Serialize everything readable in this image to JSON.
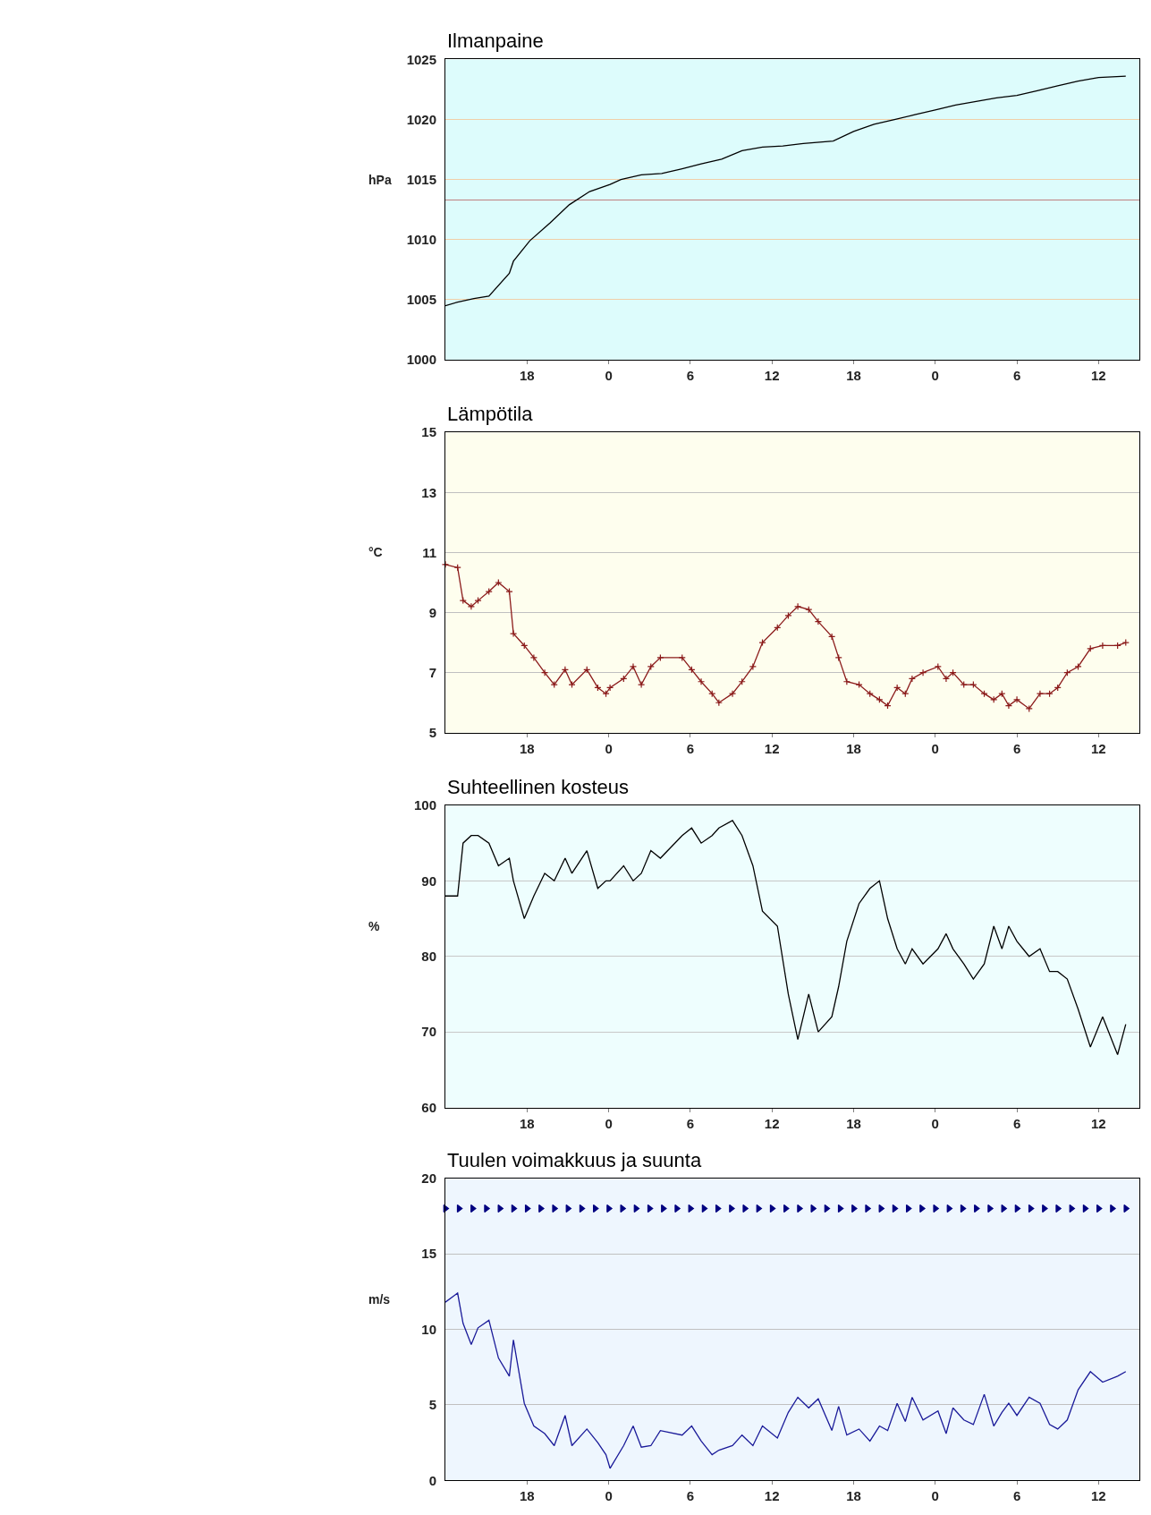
{
  "chart_data": [
    {
      "type": "line",
      "title": "Ilmanpaine",
      "ylabel": "hPa",
      "xlim": [
        "--01-01T12:00",
        "--01-03T15:00"
      ],
      "ylim": [
        1000,
        1025
      ],
      "yticks": [
        1000,
        1005,
        1010,
        1015,
        1020,
        1025
      ],
      "xticks": [
        {
          "value": "--01-01T18:00",
          "label": "18"
        },
        {
          "value": "--01-02T00:00",
          "label": "0"
        },
        {
          "value": "--01-02T06:00",
          "label": "6"
        },
        {
          "value": "--01-02T12:00",
          "label": "12"
        },
        {
          "value": "--01-02T18:00",
          "label": "18"
        },
        {
          "value": "--01-03T00:00",
          "label": "0"
        },
        {
          "value": "--01-03T06:00",
          "label": "6"
        },
        {
          "value": "--01-03T12:00",
          "label": "12"
        }
      ],
      "grid": "y",
      "ref_lines": [
        {
          "axis": "y",
          "value": 1013.3,
          "color": "#c08080"
        }
      ],
      "series": [
        {
          "color": "#000000",
          "x": [
            "--01-01T12:00",
            "--01-01T12:54",
            "--01-01T14:06",
            "--01-01T15:12",
            "--01-01T16:42",
            "--01-01T17:00",
            "--01-01T18:12",
            "--01-01T19:42",
            "--01-01T21:06",
            "--01-01T22:36",
            "--01-02T00:06",
            "--01-02T00:54",
            "--01-02T02:24",
            "--01-02T03:54",
            "--01-02T05:24",
            "--01-02T06:48",
            "--01-02T08:18",
            "--01-02T09:48",
            "--01-02T11:18",
            "--01-02T12:48",
            "--01-02T14:18",
            "--01-02T16:30",
            "--01-02T18:00",
            "--01-02T19:30",
            "--01-02T21:00",
            "--01-02T22:30",
            "--01-03T00:00",
            "--01-03T01:30",
            "--01-03T03:00",
            "--01-03T04:30",
            "--01-03T06:00",
            "--01-03T07:30",
            "--01-03T09:00",
            "--01-03T10:30",
            "--01-03T12:00",
            "--01-03T14:00"
          ],
          "values": [
            1004.5,
            1004.8,
            1005.1,
            1005.3,
            1007.2,
            1008.2,
            1009.9,
            1011.4,
            1012.9,
            1014.0,
            1014.6,
            1015.0,
            1015.4,
            1015.5,
            1015.9,
            1016.3,
            1016.7,
            1017.4,
            1017.7,
            1017.8,
            1018.0,
            1018.2,
            1019.0,
            1019.6,
            1020.0,
            1020.4,
            1020.8,
            1021.2,
            1021.5,
            1021.8,
            1022.0,
            1022.4,
            1022.8,
            1023.2,
            1023.5,
            1023.6
          ]
        }
      ]
    },
    {
      "type": "line",
      "title": "Lämpötila",
      "ylabel": "°C",
      "xlim": [
        "--01-01T12:00",
        "--01-03T15:00"
      ],
      "ylim": [
        5,
        15
      ],
      "yticks": [
        5,
        7,
        9,
        11,
        13,
        15
      ],
      "xticks": [
        {
          "value": "--01-01T18:00",
          "label": "18"
        },
        {
          "value": "--01-02T00:00",
          "label": "0"
        },
        {
          "value": "--01-02T06:00",
          "label": "6"
        },
        {
          "value": "--01-02T12:00",
          "label": "12"
        },
        {
          "value": "--01-02T18:00",
          "label": "18"
        },
        {
          "value": "--01-03T00:00",
          "label": "0"
        },
        {
          "value": "--01-03T06:00",
          "label": "6"
        },
        {
          "value": "--01-03T12:00",
          "label": "12"
        }
      ],
      "grid": "y",
      "x": [
        "--01-01T12:00",
        "--01-01T12:54",
        "--01-01T13:18",
        "--01-01T13:54",
        "--01-01T14:24",
        "--01-01T15:12",
        "--01-01T15:54",
        "--01-01T16:42",
        "--01-01T17:00",
        "--01-01T17:48",
        "--01-01T18:30",
        "--01-01T19:18",
        "--01-01T20:00",
        "--01-01T20:48",
        "--01-01T21:18",
        "--01-01T22:24",
        "--01-01T23:12",
        "--01-01T23:48",
        "--01-02T00:06",
        "--01-02T01:06",
        "--01-02T01:48",
        "--01-02T02:24",
        "--01-02T03:06",
        "--01-02T03:48",
        "--01-02T05:24",
        "--01-02T06:06",
        "--01-02T06:48",
        "--01-02T07:36",
        "--01-02T08:06",
        "--01-02T09:06",
        "--01-02T09:48",
        "--01-02T10:36",
        "--01-02T11:18",
        "--01-02T12:24",
        "--01-02T13:12",
        "--01-02T13:54",
        "--01-02T14:42",
        "--01-02T15:24",
        "--01-02T16:24",
        "--01-02T16:54",
        "--01-02T17:30",
        "--01-02T18:24",
        "--01-02T19:12",
        "--01-02T19:54",
        "--01-02T20:30",
        "--01-02T21:12",
        "--01-02T21:48",
        "--01-02T22:18",
        "--01-02T23:06",
        "--01-03T00:12",
        "--01-03T00:48",
        "--01-03T01:18",
        "--01-03T02:06",
        "--01-03T02:48",
        "--01-03T03:36",
        "--01-03T04:18",
        "--01-03T04:54",
        "--01-03T05:24",
        "--01-03T06:00",
        "--01-03T06:54",
        "--01-03T07:42",
        "--01-03T08:24",
        "--01-03T09:00",
        "--01-03T09:42",
        "--01-03T10:30",
        "--01-03T11:24",
        "--01-03T12:18",
        "--01-03T13:24",
        "--01-03T14:00"
      ],
      "series": [
        {
          "color": "#8b1a1a",
          "marker": "cross",
          "values": [
            10.6,
            10.5,
            9.4,
            9.2,
            9.4,
            9.7,
            10.0,
            9.7,
            8.3,
            7.9,
            7.5,
            7.0,
            6.6,
            7.1,
            6.6,
            7.1,
            6.5,
            6.3,
            6.5,
            6.8,
            7.2,
            6.6,
            7.2,
            7.5,
            7.5,
            7.1,
            6.7,
            6.3,
            6.0,
            6.3,
            6.7,
            7.2,
            8.0,
            8.5,
            8.9,
            9.2,
            9.1,
            8.7,
            8.2,
            7.5,
            6.7,
            6.6,
            6.3,
            6.1,
            5.9,
            6.5,
            6.3,
            6.8,
            7.0,
            7.2,
            6.8,
            7.0,
            6.6,
            6.6,
            6.3,
            6.1,
            6.3,
            5.9,
            6.1,
            5.8,
            6.3,
            6.3,
            6.5,
            7.0,
            7.2,
            7.8,
            7.9,
            7.9,
            8.0
          ]
        }
      ]
    },
    {
      "type": "line",
      "title": "Suhteellinen kosteus",
      "ylabel": "%",
      "xlim": [
        "--01-01T12:00",
        "--01-03T15:00"
      ],
      "ylim": [
        60,
        100
      ],
      "yticks": [
        60,
        70,
        80,
        90,
        100
      ],
      "xticks": [
        {
          "value": "--01-01T18:00",
          "label": "18"
        },
        {
          "value": "--01-02T00:00",
          "label": "0"
        },
        {
          "value": "--01-02T06:00",
          "label": "6"
        },
        {
          "value": "--01-02T12:00",
          "label": "12"
        },
        {
          "value": "--01-02T18:00",
          "label": "18"
        },
        {
          "value": "--01-03T00:00",
          "label": "0"
        },
        {
          "value": "--01-03T06:00",
          "label": "6"
        },
        {
          "value": "--01-03T12:00",
          "label": "12"
        }
      ],
      "grid": "y",
      "x": [
        "--01-01T12:00",
        "--01-01T12:54",
        "--01-01T13:18",
        "--01-01T13:54",
        "--01-01T14:24",
        "--01-01T15:12",
        "--01-01T15:54",
        "--01-01T16:42",
        "--01-01T17:00",
        "--01-01T17:48",
        "--01-01T18:30",
        "--01-01T19:18",
        "--01-01T20:00",
        "--01-01T20:48",
        "--01-01T21:18",
        "--01-01T22:24",
        "--01-01T23:12",
        "--01-01T23:48",
        "--01-02T00:06",
        "--01-02T01:06",
        "--01-02T01:48",
        "--01-02T02:24",
        "--01-02T03:06",
        "--01-02T03:48",
        "--01-02T05:24",
        "--01-02T06:06",
        "--01-02T06:48",
        "--01-02T07:36",
        "--01-02T08:06",
        "--01-02T09:06",
        "--01-02T09:48",
        "--01-02T10:36",
        "--01-02T11:18",
        "--01-02T12:24",
        "--01-02T13:12",
        "--01-02T13:54",
        "--01-02T14:42",
        "--01-02T15:24",
        "--01-02T16:24",
        "--01-02T16:54",
        "--01-02T17:30",
        "--01-02T18:24",
        "--01-02T19:12",
        "--01-02T19:54",
        "--01-02T20:30",
        "--01-02T21:12",
        "--01-02T21:48",
        "--01-02T22:18",
        "--01-02T23:06",
        "--01-03T00:12",
        "--01-03T00:48",
        "--01-03T01:18",
        "--01-03T02:06",
        "--01-03T02:48",
        "--01-03T03:36",
        "--01-03T04:18",
        "--01-03T04:54",
        "--01-03T05:24",
        "--01-03T06:00",
        "--01-03T06:54",
        "--01-03T07:42",
        "--01-03T08:24",
        "--01-03T09:00",
        "--01-03T09:42",
        "--01-03T10:30",
        "--01-03T11:24",
        "--01-03T12:18",
        "--01-03T13:24",
        "--01-03T14:00"
      ],
      "series": [
        {
          "color": "#000000",
          "values": [
            88,
            88,
            95,
            96,
            96,
            95,
            92,
            93,
            90,
            85,
            88,
            91,
            90,
            93,
            91,
            94,
            89,
            90,
            90,
            92,
            90,
            91,
            94,
            93,
            96,
            97,
            95,
            96,
            97,
            98,
            96,
            92,
            86,
            84,
            75,
            69,
            75,
            70,
            72,
            76,
            82,
            87,
            89,
            90,
            85,
            81,
            79,
            81,
            79,
            81,
            83,
            81,
            79,
            77,
            79,
            84,
            81,
            84,
            82,
            80,
            81,
            78,
            78,
            77,
            73,
            68,
            72,
            67,
            71
          ]
        }
      ]
    },
    {
      "type": "line",
      "title": "Tuulen voimakkuus ja suunta",
      "ylabel": "m/s",
      "xlim": [
        "--01-01T12:00",
        "--01-03T15:00"
      ],
      "ylim": [
        0,
        20
      ],
      "yticks": [
        0,
        5,
        10,
        15,
        20
      ],
      "xticks": [
        {
          "value": "--01-01T18:00",
          "label": "18"
        },
        {
          "value": "--01-02T00:00",
          "label": "0"
        },
        {
          "value": "--01-02T06:00",
          "label": "6"
        },
        {
          "value": "--01-02T12:00",
          "label": "12"
        },
        {
          "value": "--01-02T18:00",
          "label": "18"
        },
        {
          "value": "--01-03T00:00",
          "label": "0"
        },
        {
          "value": "--01-03T06:00",
          "label": "6"
        },
        {
          "value": "--01-03T12:00",
          "label": "12"
        }
      ],
      "grid": "y",
      "x": [
        "--01-01T12:00",
        "--01-01T12:54",
        "--01-01T13:18",
        "--01-01T13:54",
        "--01-01T14:24",
        "--01-01T15:12",
        "--01-01T15:54",
        "--01-01T16:42",
        "--01-01T17:00",
        "--01-01T17:48",
        "--01-01T18:30",
        "--01-01T19:18",
        "--01-01T20:00",
        "--01-01T20:48",
        "--01-01T21:18",
        "--01-01T22:24",
        "--01-01T23:12",
        "--01-01T23:48",
        "--01-02T00:06",
        "--01-02T01:06",
        "--01-02T01:48",
        "--01-02T02:24",
        "--01-02T03:06",
        "--01-02T03:48",
        "--01-02T05:24",
        "--01-02T06:06",
        "--01-02T06:48",
        "--01-02T07:36",
        "--01-02T08:06",
        "--01-02T09:06",
        "--01-02T09:48",
        "--01-02T10:36",
        "--01-02T11:18",
        "--01-02T12:24",
        "--01-02T13:12",
        "--01-02T13:54",
        "--01-02T14:42",
        "--01-02T15:24",
        "--01-02T16:24",
        "--01-02T16:54",
        "--01-02T17:30",
        "--01-02T18:24",
        "--01-02T19:12",
        "--01-02T19:54",
        "--01-02T20:30",
        "--01-02T21:12",
        "--01-02T21:48",
        "--01-02T22:18",
        "--01-02T23:06",
        "--01-03T00:12",
        "--01-03T00:48",
        "--01-03T01:18",
        "--01-03T02:06",
        "--01-03T02:48",
        "--01-03T03:36",
        "--01-03T04:18",
        "--01-03T04:54",
        "--01-03T05:24",
        "--01-03T06:00",
        "--01-03T06:54",
        "--01-03T07:42",
        "--01-03T08:24",
        "--01-03T09:00",
        "--01-03T09:42",
        "--01-03T10:30",
        "--01-03T11:24",
        "--01-03T12:18",
        "--01-03T13:24",
        "--01-03T14:00"
      ],
      "series": [
        {
          "color": "#1a1a99",
          "values": [
            11.8,
            12.4,
            10.4,
            9.0,
            10.1,
            10.6,
            8.1,
            6.9,
            9.3,
            5.1,
            3.6,
            3.1,
            2.3,
            4.3,
            2.3,
            3.4,
            2.5,
            1.7,
            0.8,
            2.3,
            3.6,
            2.2,
            2.3,
            3.3,
            3.0,
            3.6,
            2.6,
            1.7,
            2.0,
            2.3,
            3.0,
            2.3,
            3.6,
            2.8,
            4.5,
            5.5,
            4.8,
            5.4,
            3.3,
            4.9,
            3.0,
            3.4,
            2.6,
            3.6,
            3.3,
            5.1,
            3.9,
            5.5,
            4.0,
            4.6,
            3.1,
            4.8,
            4.0,
            3.7,
            5.7,
            3.6,
            4.5,
            5.1,
            4.3,
            5.5,
            5.1,
            3.7,
            3.4,
            4.0,
            6.0,
            7.2,
            6.5,
            6.9,
            7.2
          ]
        },
        {
          "type": "scatter",
          "color": "#000080",
          "marker": "triangle",
          "x": [
            "--01-01T12:00",
            "--01-01T13:00",
            "--01-01T14:00",
            "--01-01T15:00",
            "--01-01T16:00",
            "--01-01T17:00",
            "--01-01T18:00",
            "--01-01T19:00",
            "--01-01T20:00",
            "--01-01T21:00",
            "--01-01T22:00",
            "--01-01T23:00",
            "--01-02T00:00",
            "--01-02T01:00",
            "--01-02T02:00",
            "--01-02T03:00",
            "--01-02T04:00",
            "--01-02T05:00",
            "--01-02T06:00",
            "--01-02T07:00",
            "--01-02T08:00",
            "--01-02T09:00",
            "--01-02T10:00",
            "--01-02T11:00",
            "--01-02T12:00",
            "--01-02T13:00",
            "--01-02T14:00",
            "--01-02T15:00",
            "--01-02T16:00",
            "--01-02T17:00",
            "--01-02T18:00",
            "--01-02T19:00",
            "--01-02T20:00",
            "--01-02T21:00",
            "--01-02T22:00",
            "--01-02T23:00",
            "--01-03T00:00",
            "--01-03T01:00",
            "--01-03T02:00",
            "--01-03T03:00",
            "--01-03T04:00",
            "--01-03T05:00",
            "--01-03T06:00",
            "--01-03T07:00",
            "--01-03T08:00",
            "--01-03T09:00",
            "--01-03T10:00",
            "--01-03T11:00",
            "--01-03T12:00",
            "--01-03T13:00",
            "--01-03T14:00"
          ],
          "values": [
            18,
            18,
            18,
            18,
            18,
            18,
            18,
            18,
            18,
            18,
            18,
            18,
            18,
            18,
            18,
            18,
            18,
            18,
            18,
            18,
            18,
            18,
            18,
            18,
            18,
            18,
            18,
            18,
            18,
            18,
            18,
            18,
            18,
            18,
            18,
            18,
            18,
            18,
            18,
            18,
            18,
            18,
            18,
            18,
            18,
            18,
            18,
            18,
            18,
            18,
            18
          ]
        }
      ]
    }
  ]
}
